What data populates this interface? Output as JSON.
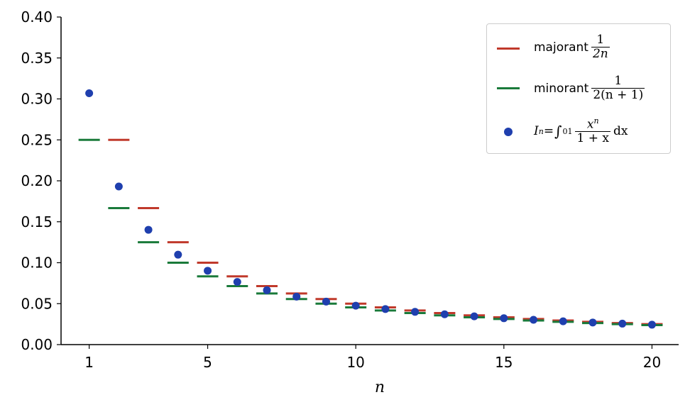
{
  "chart_data": {
    "type": "scatter",
    "xlabel": "n",
    "ylabel": "",
    "xlim": [
      0.05,
      20.9
    ],
    "ylim": [
      0,
      0.4
    ],
    "xticks": [
      1,
      5,
      10,
      15,
      20
    ],
    "xtick_labels": [
      "1",
      "5",
      "10",
      "15",
      "20"
    ],
    "yticks": [
      0.0,
      0.05,
      0.1,
      0.15,
      0.2,
      0.25,
      0.3,
      0.35,
      0.4
    ],
    "ytick_labels": [
      "0.00",
      "0.05",
      "0.10",
      "0.15",
      "0.20",
      "0.25",
      "0.30",
      "0.35",
      "0.40"
    ],
    "legend_position": "top-right",
    "series": [
      {
        "name": "majorant 1/(2n)",
        "style": "hline",
        "color": "#c0392b",
        "x": [
          2,
          3,
          4,
          5,
          6,
          7,
          8,
          9,
          10,
          11,
          12,
          13,
          14,
          15,
          16,
          17,
          18,
          19,
          20
        ],
        "values": [
          0.25,
          0.1667,
          0.125,
          0.1,
          0.0833,
          0.0714,
          0.0625,
          0.0556,
          0.05,
          0.0455,
          0.0417,
          0.0385,
          0.0357,
          0.0333,
          0.0313,
          0.0294,
          0.0278,
          0.0263,
          0.025
        ]
      },
      {
        "name": "minorant 1/(2(n+1))",
        "style": "hline",
        "color": "#1a7a3a",
        "x": [
          1,
          2,
          3,
          4,
          5,
          6,
          7,
          8,
          9,
          10,
          11,
          12,
          13,
          14,
          15,
          16,
          17,
          18,
          19,
          20
        ],
        "values": [
          0.25,
          0.1667,
          0.125,
          0.1,
          0.0833,
          0.0714,
          0.0625,
          0.0556,
          0.05,
          0.0455,
          0.0417,
          0.0385,
          0.0357,
          0.0333,
          0.0313,
          0.0294,
          0.0278,
          0.0263,
          0.025,
          0.0238
        ]
      },
      {
        "name": "I_n = ∫_0^1 x^n/(1+x) dx",
        "style": "dot",
        "color": "#1f3fae",
        "x": [
          1,
          2,
          3,
          4,
          5,
          6,
          7,
          8,
          9,
          10,
          11,
          12,
          13,
          14,
          15,
          16,
          17,
          18,
          19,
          20
        ],
        "values": [
          0.3069,
          0.1931,
          0.1402,
          0.1098,
          0.0902,
          0.0765,
          0.0664,
          0.0586,
          0.0525,
          0.0475,
          0.0434,
          0.04,
          0.037,
          0.0345,
          0.0322,
          0.0303,
          0.0285,
          0.027,
          0.0256,
          0.0243
        ]
      }
    ]
  },
  "legend": {
    "majorant_word": "majorant",
    "majorant_num": "1",
    "majorant_den": "2n",
    "minorant_word": "minorant",
    "minorant_num": "1",
    "minorant_den": "2(n + 1)",
    "integral_lhs": "I",
    "integral_sub": "n",
    "integral_eq": " = ",
    "integral_sign": "∫",
    "integral_lower": "0",
    "integral_upper": "1",
    "integral_num": "x",
    "integral_num_sup": "n",
    "integral_den": "1 + x",
    "integral_dx": "dx"
  }
}
